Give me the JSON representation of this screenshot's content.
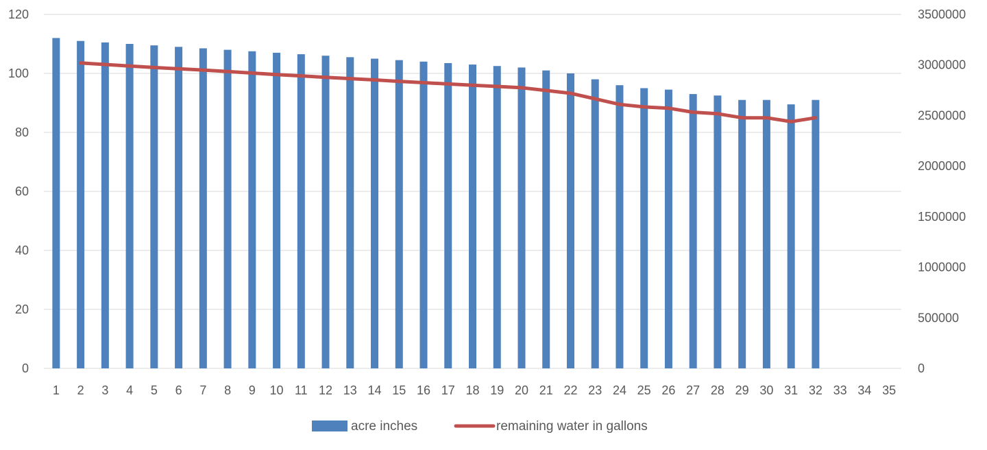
{
  "chart_data": {
    "type": "bar",
    "categories": [
      "1",
      "2",
      "3",
      "4",
      "5",
      "6",
      "7",
      "8",
      "9",
      "10",
      "11",
      "12",
      "13",
      "14",
      "15",
      "16",
      "17",
      "18",
      "19",
      "20",
      "21",
      "22",
      "23",
      "24",
      "25",
      "26",
      "27",
      "28",
      "29",
      "30",
      "31",
      "32",
      "33",
      "34",
      "35"
    ],
    "series": [
      {
        "name": "acre inches",
        "type": "bar",
        "axis": "left",
        "color": "#4f81bd",
        "values": [
          112,
          111,
          110.5,
          110,
          109.5,
          109,
          108.5,
          108,
          107.5,
          107,
          106.5,
          106,
          105.5,
          105,
          104.5,
          104,
          103.5,
          103,
          102.5,
          102,
          101,
          100,
          98,
          96,
          95,
          94.5,
          93,
          92.5,
          91,
          91,
          89.5,
          91,
          null,
          null,
          null
        ]
      },
      {
        "name": "remaining water in gallons",
        "type": "line",
        "axis": "right",
        "color": "#c0504d",
        "values": [
          null,
          3020000,
          3005000,
          2990000,
          2975000,
          2962000,
          2950000,
          2935000,
          2920000,
          2905000,
          2892000,
          2878000,
          2865000,
          2852000,
          2838000,
          2825000,
          2812000,
          2800000,
          2788000,
          2775000,
          2748000,
          2720000,
          2665000,
          2610000,
          2585000,
          2573000,
          2533000,
          2518000,
          2478000,
          2478000,
          2440000,
          2478000,
          null,
          null,
          null
        ]
      }
    ],
    "y_left": {
      "min": 0,
      "max": 120,
      "ticks": [
        0,
        20,
        40,
        60,
        80,
        100,
        120
      ]
    },
    "y_right": {
      "min": 0,
      "max": 3500000,
      "ticks": [
        0,
        500000,
        1000000,
        1500000,
        2000000,
        2500000,
        3000000,
        3500000
      ]
    },
    "grid": true,
    "legend_position": "bottom"
  }
}
